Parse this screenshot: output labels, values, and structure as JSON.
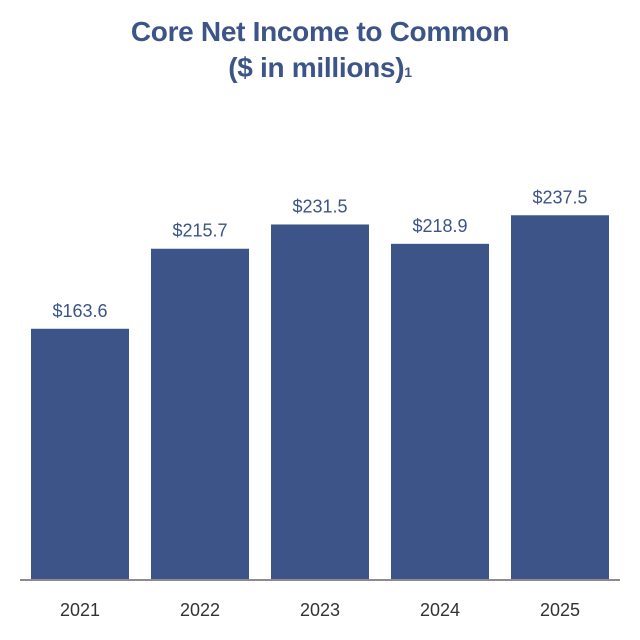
{
  "chart_data": {
    "type": "bar",
    "title": "Core Net Income to Common",
    "subtitle": "($ in millions)",
    "subtitle_footnote": "1",
    "categories": [
      "2021",
      "2022",
      "2023",
      "2024",
      "2025"
    ],
    "values": [
      163.6,
      215.7,
      231.5,
      218.9,
      237.5
    ],
    "data_labels": [
      "$163.6",
      "$215.7",
      "$231.5",
      "$218.9",
      "$237.5"
    ],
    "ylim": [
      0,
      280
    ],
    "grid": false,
    "legend": "none",
    "bar_color": "#3c5487",
    "label_color": "#3c5487",
    "axis_color": "#8c8c8c"
  }
}
